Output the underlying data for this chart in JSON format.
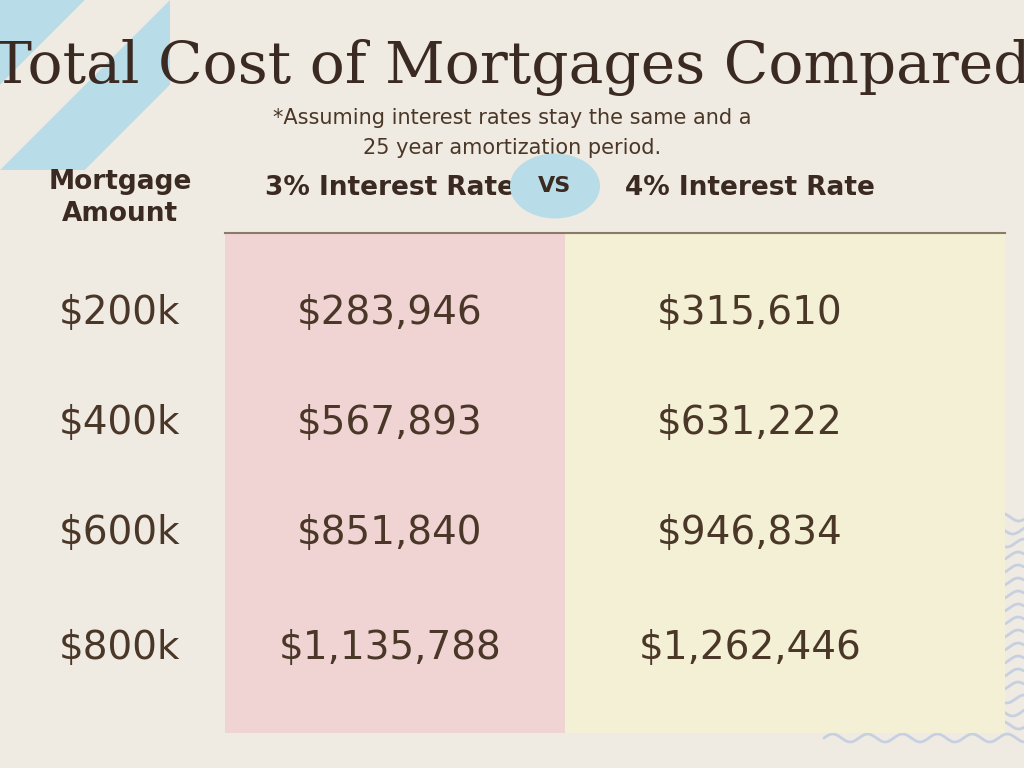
{
  "title": "Total Cost of Mortgages Compared",
  "subtitle": "*Assuming interest rates stay the same and a\n25 year amortization period.",
  "col1_header": "Mortgage\nAmount",
  "col2_header": "3% Interest Rate",
  "col3_header": "4% Interest Rate",
  "vs_label": "VS",
  "mortgage_amounts": [
    "$200k",
    "$400k",
    "$600k",
    "$800k"
  ],
  "rate3_values": [
    "$283,946",
    "$567,893",
    "$851,840",
    "$1,135,788"
  ],
  "rate4_values": [
    "$315,610",
    "$631,222",
    "$946,834",
    "$1,262,446"
  ],
  "bg_color": "#f0ebe2",
  "col2_bg": "#f0d4d4",
  "col3_bg": "#f3f0d5",
  "vs_circle_color": "#b8dde8",
  "title_color": "#3a2a22",
  "text_color": "#4a3728",
  "header_color": "#3a2a22",
  "value_color": "#4a3728",
  "divider_color": "#8a7a6a",
  "triangle_color_light": "#b8dde8",
  "triangle_bg": "#f0ebe2",
  "wave_color": "#c0cce0",
  "wave_fill": "#d4dced"
}
